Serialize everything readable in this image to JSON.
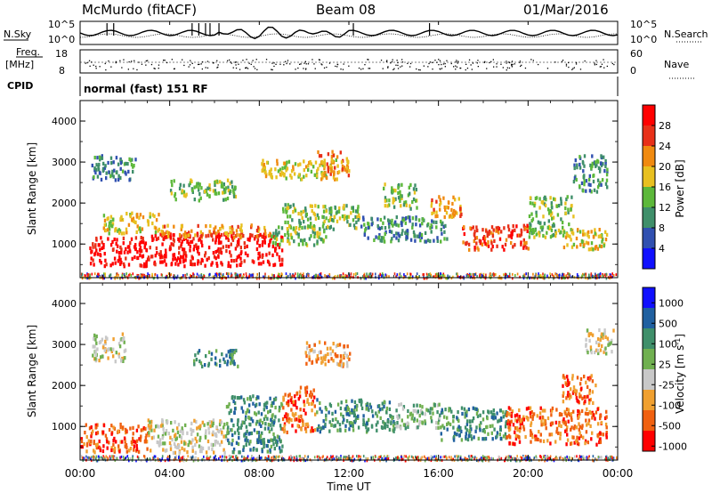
{
  "header": {
    "station": "McMurdo (fitACF)",
    "beam": "Beam 08",
    "date": "01/Mar/2016"
  },
  "noise_panel": {
    "left_label": "N.Sky",
    "right_label": "N.Search",
    "left_ticks": [
      "10^5",
      "10^0"
    ],
    "right_ticks": [
      "10^5",
      "10^0"
    ]
  },
  "freq_panel": {
    "left_label_top": "Freq.",
    "left_label_bottom": "[MHz]",
    "left_ticks": [
      "18",
      "8"
    ],
    "right_label": "Nave",
    "right_ticks": [
      "60",
      "0"
    ]
  },
  "cpid_panel": {
    "label": "CPID",
    "text": "normal (fast) 151 RF"
  },
  "chart_data": [
    {
      "type": "heatmap",
      "name": "power",
      "ylabel": "Slant Range [km]",
      "ylim": [
        180,
        4500
      ],
      "y_ticks": [
        "1000",
        "2000",
        "3000",
        "4000"
      ],
      "colorbar_label": "Power [dB]",
      "colorbar_ticks": [
        "4",
        "8",
        "12",
        "16",
        "20",
        "24",
        "28"
      ],
      "color_scale": [
        "#1010ff",
        "#3050b0",
        "#3f8f6a",
        "#5cb83a",
        "#e8c020",
        "#f08a10",
        "#e83018",
        "#ff0000"
      ],
      "regions": [
        {
          "t0": 0.4,
          "t1": 3.0,
          "r0": 500,
          "r1": 1200,
          "level": 7
        },
        {
          "t0": 3.0,
          "t1": 9.0,
          "r0": 500,
          "r1": 1300,
          "level": 7
        },
        {
          "t0": 1.0,
          "t1": 3.5,
          "r0": 1300,
          "r1": 1800,
          "level": 4
        },
        {
          "t0": 3.5,
          "t1": 8.5,
          "r0": 1200,
          "r1": 1500,
          "level": 5
        },
        {
          "t0": 8.5,
          "t1": 11.0,
          "r0": 1000,
          "r1": 1500,
          "level": 3
        },
        {
          "t0": 9.0,
          "t1": 12.5,
          "r0": 1400,
          "r1": 2000,
          "level": 3
        },
        {
          "t0": 12.5,
          "t1": 16.5,
          "r0": 1100,
          "r1": 1700,
          "level": 2
        },
        {
          "t0": 13.5,
          "t1": 15.0,
          "r0": 1900,
          "r1": 2500,
          "level": 3
        },
        {
          "t0": 15.5,
          "t1": 17.0,
          "r0": 1700,
          "r1": 2200,
          "level": 5
        },
        {
          "t0": 17.0,
          "t1": 20.0,
          "r0": 900,
          "r1": 1500,
          "level": 6
        },
        {
          "t0": 20.0,
          "t1": 22.0,
          "r0": 1200,
          "r1": 2200,
          "level": 3
        },
        {
          "t0": 21.5,
          "t1": 23.5,
          "r0": 900,
          "r1": 1400,
          "level": 4
        },
        {
          "t0": 0.5,
          "t1": 2.5,
          "r0": 2600,
          "r1": 3200,
          "level": 2
        },
        {
          "t0": 8.0,
          "t1": 11.5,
          "r0": 2600,
          "r1": 3100,
          "level": 4
        },
        {
          "t0": 10.5,
          "t1": 12.0,
          "r0": 2700,
          "r1": 3300,
          "level": 5
        },
        {
          "t0": 4.0,
          "t1": 7.0,
          "r0": 2100,
          "r1": 2600,
          "level": 3
        },
        {
          "t0": 22.0,
          "t1": 23.5,
          "r0": 2300,
          "r1": 3200,
          "level": 2
        }
      ]
    },
    {
      "type": "heatmap",
      "name": "velocity",
      "ylabel": "Slant Range [km]",
      "ylim": [
        180,
        4500
      ],
      "y_ticks": [
        "1000",
        "2000",
        "3000",
        "4000"
      ],
      "colorbar_label": "Velocity [m s^-1]",
      "colorbar_ticks": [
        "1000",
        "500",
        "100",
        "25",
        "-25",
        "-100",
        "-500",
        "-1000"
      ],
      "color_scale": [
        "#ff0000",
        "#f06010",
        "#f0a030",
        "#c8c8c8",
        "#70b050",
        "#3f8f6a",
        "#2060a0",
        "#1010ff"
      ],
      "regions": [
        {
          "t0": 0.0,
          "t1": 3.0,
          "r0": 400,
          "r1": 1100,
          "level": 1
        },
        {
          "t0": 3.0,
          "t1": 6.5,
          "r0": 400,
          "r1": 1200,
          "level": 3
        },
        {
          "t0": 6.5,
          "t1": 9.0,
          "r0": 400,
          "r1": 1800,
          "level": 5
        },
        {
          "t0": 9.0,
          "t1": 10.5,
          "r0": 900,
          "r1": 2000,
          "level": 1
        },
        {
          "t0": 10.5,
          "t1": 14.0,
          "r0": 900,
          "r1": 1700,
          "level": 5
        },
        {
          "t0": 14.0,
          "t1": 16.0,
          "r0": 1000,
          "r1": 1600,
          "level": 4
        },
        {
          "t0": 16.0,
          "t1": 19.0,
          "r0": 700,
          "r1": 1500,
          "level": 5
        },
        {
          "t0": 19.0,
          "t1": 23.5,
          "r0": 600,
          "r1": 1500,
          "level": 1
        },
        {
          "t0": 21.5,
          "t1": 23.0,
          "r0": 1600,
          "r1": 2300,
          "level": 1
        },
        {
          "t0": 0.5,
          "t1": 2.0,
          "r0": 2600,
          "r1": 3300,
          "level": 3
        },
        {
          "t0": 5.0,
          "t1": 7.0,
          "r0": 2500,
          "r1": 2900,
          "level": 5
        },
        {
          "t0": 10.0,
          "t1": 12.0,
          "r0": 2500,
          "r1": 3100,
          "level": 2
        },
        {
          "t0": 22.5,
          "t1": 23.8,
          "r0": 2800,
          "r1": 3400,
          "level": 3
        }
      ]
    }
  ],
  "x_axis": {
    "label": "Time UT",
    "ticks": [
      "00:00",
      "04:00",
      "08:00",
      "12:00",
      "16:00",
      "20:00",
      "00:00"
    ],
    "range_hours": [
      0,
      24
    ]
  }
}
